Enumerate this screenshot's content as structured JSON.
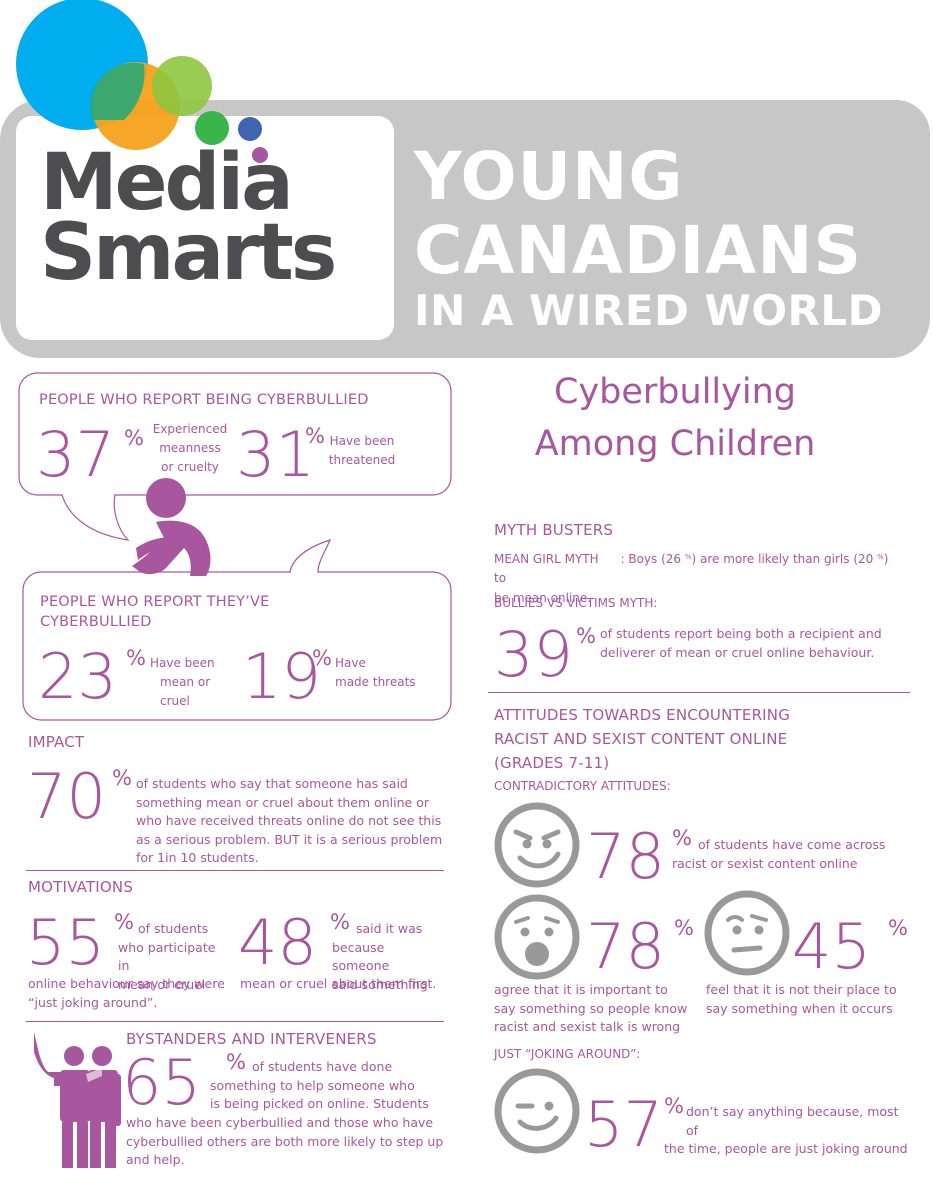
{
  "colors": {
    "purple": "#a8579e",
    "grey": "#c7c7c7",
    "dark": "#4d4d4f",
    "blue": "#00aeef",
    "orange": "#f7a21b",
    "green": "#8dc63f",
    "green2": "#39b54a",
    "navy": "#3f64b0",
    "magenta": "#a8579e"
  },
  "logo": {
    "line1": "Media",
    "line2": "Smarts"
  },
  "banner": {
    "line1": "YOUNG",
    "line2": "CANADIANS",
    "line3": "IN A WIRED WORLD"
  },
  "subtitle": {
    "line1": "Cyberbullying",
    "line2": "Among Children"
  },
  "cyberbullied": {
    "heading": "PEOPLE WHO REPORT BEING CYBERBULLIED",
    "stat1": {
      "value": "37",
      "unit": "%",
      "label": [
        "Experienced",
        "meanness",
        "or cruelty"
      ]
    },
    "stat2": {
      "value": "31",
      "unit": "%",
      "label": [
        "Have been",
        "threatened"
      ]
    }
  },
  "bullied_others": {
    "heading": [
      "PEOPLE WHO REPORT THEY’VE",
      "CYBERBULLIED"
    ],
    "stat1": {
      "value": "23",
      "unit": "%",
      "label": [
        "Have been",
        "mean or cruel"
      ]
    },
    "stat2": {
      "value": "19",
      "unit": "%",
      "label": [
        "Have",
        "made threats"
      ]
    }
  },
  "impact": {
    "heading": "IMPACT",
    "value": "70",
    "unit": "%",
    "text": [
      "of students who say that someone has said",
      "something mean or cruel about them online or",
      "who have received threats online do not see this",
      "as a serious problem. BUT it is a serious problem",
      "for 1in 10 students."
    ]
  },
  "motivations": {
    "heading": "MOTIVATIONS",
    "stat1": {
      "value": "55",
      "unit": "%",
      "text": [
        "of students",
        "who participate in",
        "mean or cruel"
      ],
      "tail": [
        "online behaviour say they were",
        "“just joking around”."
      ]
    },
    "stat2": {
      "value": "48",
      "unit": "%",
      "text": [
        "said it was",
        "because someone",
        "said something"
      ],
      "tail": [
        "mean or cruel about them first."
      ]
    }
  },
  "bystanders": {
    "heading": "BYSTANDERS AND INTERVENERS",
    "value": "65",
    "unit": "%",
    "text": [
      "of students have done",
      "something to help someone who",
      "is being picked on online. Students"
    ],
    "tail": [
      "who have been cyberbullied and those who have",
      "cyberbullied others are both more likely to step up",
      "and help."
    ]
  },
  "myth": {
    "heading": "MYTH BUSTERS",
    "mean_girl_label": "MEAN GIRL MYTH",
    "mean_girl_text": [
      ": Boys (26 ",
      ") are more likely than girls (20 ",
      ") to"
    ],
    "mean_girl_unit": "%",
    "mean_girl_text2": "be mean online.",
    "bullies_label": "BULLIES VS VICTIMS MYTH:",
    "value": "39",
    "unit": "%",
    "text": [
      "of students report being both a recipient and",
      "deliverer of mean or cruel online behaviour."
    ]
  },
  "attitudes": {
    "heading": [
      "ATTITUDES TOWARDS ENCOUNTERING",
      "RACIST AND SEXIST CONTENT ONLINE",
      "(GRADES 7-11)"
    ],
    "contradictory": "CONTRADICTORY ATTITUDES:",
    "stat1": {
      "value": "78",
      "unit": "%",
      "text": [
        "of students have come across",
        "racist or sexist content online"
      ],
      "icon": "smirking-face-icon"
    },
    "stat2": {
      "value": "78",
      "unit": "%",
      "text": [
        "agree that it is important to",
        "say something so people know",
        "racist and sexist talk is wrong"
      ],
      "icon": "shocked-face-icon"
    },
    "stat3": {
      "value": "45",
      "unit": "%",
      "text": [
        "feel that it is not their place to",
        "say something when it occurs"
      ],
      "icon": "worried-face-icon"
    },
    "joking": "JUST “JOKING AROUND”:",
    "stat4": {
      "value": "57",
      "unit": "%",
      "text": [
        "don’t say anything because, most of",
        "the time, people are just joking around"
      ],
      "icon": "winking-face-icon"
    }
  }
}
